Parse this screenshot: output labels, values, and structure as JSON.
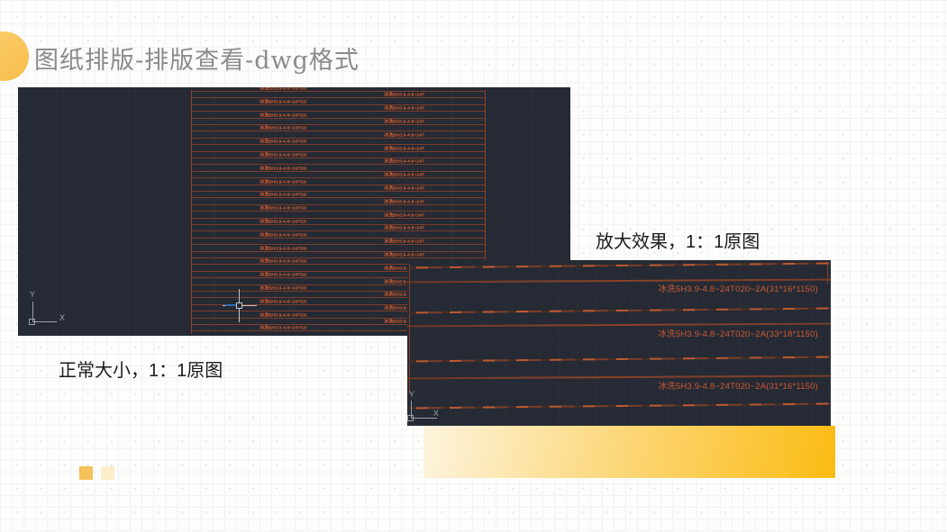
{
  "slide": {
    "title": "图纸排版-排版查看-dwg格式",
    "caption_normal": "正常大小，1：1原图",
    "caption_zoom": "放大效果，1：1原图"
  },
  "colors": {
    "accent_yellow": "#F9C45C",
    "accent_yellow_light": "#FBEEC9",
    "gradient_bar_start": "#FDF4DE",
    "gradient_bar_end": "#FBBB13",
    "title_gray": "#8B8B8B",
    "cad_background": "#252A34",
    "cad_line_dim": "#7C3D27",
    "cad_line_bright": "#C05A2F",
    "cad_text_orange": "#E8622D",
    "ucs_gray": "#9AA1A9",
    "crosshair_blue": "#2E6CB6"
  },
  "cad_normal": {
    "description": "dwg drawing at normal size, dense rows of part lines with tiny illegible orange part labels",
    "row_count": 37,
    "row_label": "冰洗5H3.9-4.8~24T020~2A(31*16*1150)",
    "ucs": {
      "y_label": "Y",
      "x_label": "X"
    }
  },
  "cad_zoom": {
    "description": "same dwg drawing zoomed in, part labels readable",
    "labels": [
      "冰洗5H3.9-4.8~24T020~2A(31*16*1150)",
      "冰洗5H3.9-4.8~24T020~2A(33*18*1150)",
      "冰洗5H3.9-4.8~24T020~2A(31*16*1150)"
    ],
    "ucs": {
      "y_label": "Y",
      "x_label": "X"
    }
  }
}
